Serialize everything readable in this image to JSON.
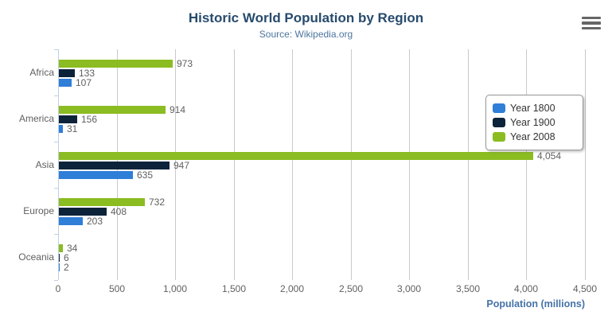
{
  "header": {
    "title": "Historic World Population by Region",
    "subtitle": "Source: Wikipedia.org"
  },
  "export_menu": {
    "icon": "hamburger-menu-icon"
  },
  "chart_data": {
    "type": "bar",
    "orientation": "horizontal",
    "title": "Historic World Population by Region",
    "subtitle": "Source: Wikipedia.org",
    "categories": [
      "Africa",
      "America",
      "Asia",
      "Europe",
      "Oceania"
    ],
    "series": [
      {
        "name": "Year 1800",
        "color": "#2f7ed8",
        "values": [
          107,
          31,
          635,
          203,
          2
        ]
      },
      {
        "name": "Year 1900",
        "color": "#0d233a",
        "values": [
          133,
          156,
          947,
          408,
          6
        ]
      },
      {
        "name": "Year 2008",
        "color": "#8bbc21",
        "values": [
          973,
          914,
          4054,
          732,
          34
        ]
      }
    ],
    "series_display_order_top_to_bottom": [
      "Year 2008",
      "Year 1900",
      "Year 1800"
    ],
    "data_labels_visible": true,
    "data_label_examples": [
      "973",
      "133",
      "107",
      "914",
      "156",
      "31",
      "4,054",
      "947",
      "635",
      "732",
      "408",
      "203",
      "34",
      "6",
      "2"
    ],
    "xlabel": "Population (millions)",
    "ylabel": "",
    "xlim": [
      0,
      4500
    ],
    "x_tick_values": [
      0,
      500,
      1000,
      1500,
      2000,
      2500,
      3000,
      3500,
      4000,
      4500
    ],
    "x_tick_labels": [
      "0",
      "500",
      "1,000",
      "1,500",
      "2,000",
      "2,500",
      "3,000",
      "3,500",
      "4,000",
      "4,500"
    ],
    "grid": true,
    "legend_position": "right-overlay",
    "legend_entries": [
      "Year 1800",
      "Year 1900",
      "Year 2008"
    ]
  }
}
